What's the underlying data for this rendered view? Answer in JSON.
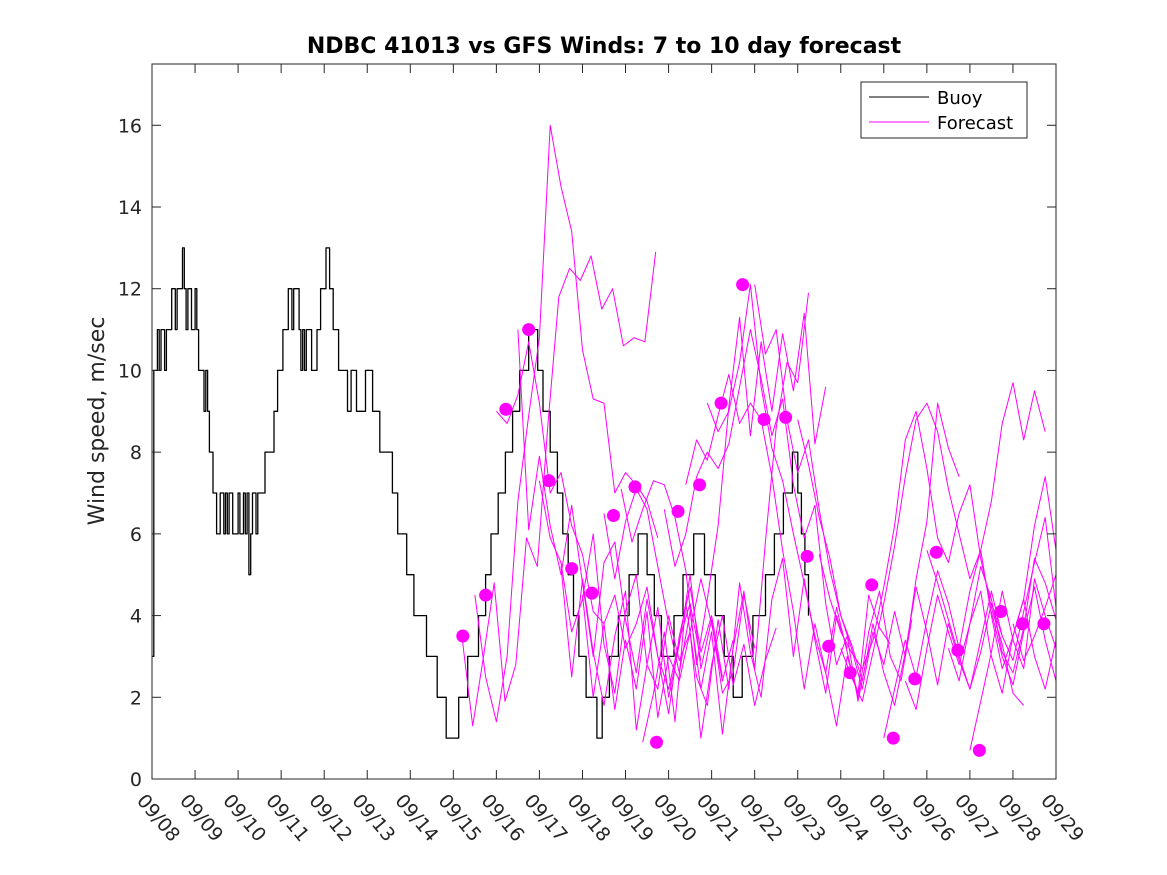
{
  "chart_data": {
    "type": "line",
    "title": "NDBC 41013 vs GFS Winds: 7 to 10 day forecast",
    "xlabel": "",
    "ylabel": "Wind speed, m/sec",
    "ylim": [
      0,
      17.5
    ],
    "yticks": [
      0,
      2,
      4,
      6,
      8,
      10,
      12,
      14,
      16
    ],
    "xlim": [
      0,
      21
    ],
    "xtick_labels": [
      "09/08",
      "09/09",
      "09/10",
      "09/11",
      "09/12",
      "09/13",
      "09/14",
      "09/15",
      "09/16",
      "09/17",
      "09/18",
      "09/19",
      "09/20",
      "09/21",
      "09/22",
      "09/23",
      "09/24",
      "09/25",
      "09/26",
      "09/27",
      "09/28",
      "09/29"
    ],
    "legend": {
      "location": "top-right",
      "entries": [
        {
          "label": "Buoy",
          "color": "#000000"
        },
        {
          "label": "Forecast",
          "color": "#ff00ff"
        }
      ]
    },
    "colors": {
      "buoy": "#000000",
      "forecast": "#ff00ff"
    },
    "series": [
      {
        "name": "Buoy",
        "color": "#000000",
        "x_start": 0,
        "x_step": 0.04167,
        "values": [
          3,
          10,
          10,
          11,
          10,
          11,
          11,
          10,
          11,
          11,
          11,
          12,
          12,
          11,
          12,
          12,
          12,
          13,
          12,
          11,
          12,
          12,
          11,
          11,
          12,
          11,
          10,
          10,
          10,
          9,
          10,
          9,
          8,
          8,
          7,
          7,
          6,
          6,
          7,
          7,
          6,
          7,
          6,
          7,
          7,
          6,
          6,
          6,
          7,
          6,
          6,
          7,
          6,
          7,
          5,
          6,
          7,
          7,
          6,
          7,
          7,
          7,
          7,
          8,
          8,
          8,
          8,
          8,
          9,
          9,
          10,
          10,
          10,
          11,
          11,
          11,
          12,
          12,
          11,
          12,
          12,
          12,
          11,
          10,
          11,
          10,
          11,
          11,
          11,
          10,
          10,
          10,
          11,
          11,
          12,
          12,
          12,
          13,
          13,
          12,
          12,
          11,
          11,
          11,
          10,
          10,
          10,
          10,
          10,
          9,
          9,
          10,
          10,
          10,
          9,
          9,
          9,
          9,
          9,
          10,
          10,
          10,
          10,
          9,
          9,
          9,
          9,
          8,
          8,
          8,
          8,
          8,
          8,
          8,
          7,
          7,
          7,
          6,
          6,
          6,
          6,
          6,
          5,
          5,
          5,
          5,
          4,
          4,
          4,
          4,
          4,
          4,
          4,
          3,
          3,
          3,
          3,
          3,
          3,
          2,
          2,
          2,
          2,
          2,
          1,
          1,
          1,
          1,
          1,
          1,
          1,
          2,
          2,
          2,
          2,
          2,
          3,
          3,
          3,
          3,
          3,
          3,
          4,
          4,
          4,
          4,
          5,
          5,
          5,
          6,
          6,
          6,
          6,
          7,
          7,
          7,
          7,
          8,
          8,
          8,
          8,
          9,
          9,
          9,
          9,
          10,
          10,
          10,
          10,
          10,
          11,
          11,
          11,
          11,
          11,
          10,
          10,
          10,
          9,
          9,
          9,
          9,
          8,
          8,
          8,
          8,
          7,
          7,
          7,
          6,
          6,
          6,
          5,
          5,
          5,
          4,
          4,
          4,
          3,
          3,
          3,
          3,
          2,
          2,
          2,
          2,
          2,
          2,
          1,
          1,
          1,
          2,
          2,
          2,
          2,
          3,
          3,
          3,
          3,
          3,
          4,
          4,
          4,
          4,
          4,
          4,
          5,
          5,
          5,
          5,
          5,
          6,
          6,
          6,
          6,
          6,
          5,
          5,
          5,
          5,
          4,
          4,
          4,
          4,
          3,
          3,
          3,
          3,
          3,
          3,
          3,
          4,
          4,
          4,
          4,
          4,
          5,
          5,
          5,
          5,
          5,
          5,
          6,
          6,
          6,
          6,
          6,
          6,
          5,
          5,
          5,
          5,
          5,
          5,
          4,
          4,
          4,
          4,
          4,
          3,
          3,
          3,
          3,
          3,
          2,
          2,
          2,
          2,
          2,
          3,
          3,
          3,
          3,
          3,
          3,
          4,
          4,
          4,
          4,
          4,
          4,
          4,
          5,
          5,
          5,
          5,
          5,
          6,
          6,
          6,
          6,
          6,
          7,
          7,
          7,
          7,
          7,
          8,
          8,
          8,
          7,
          7,
          6,
          6,
          5,
          5,
          4
        ]
      },
      {
        "name": "Forecast 1",
        "color": "#ff00ff",
        "x_start": 7.2,
        "x_step": 0.25,
        "values": [
          3.5,
          1.3,
          3.0,
          4.8,
          1.9,
          2.8,
          5.9,
          5.2,
          8.7,
          11.8,
          12.5,
          12.2,
          12.8,
          11.5,
          12.0,
          10.6,
          10.8,
          10.7,
          12.9
        ]
      },
      {
        "name": "Forecast 2",
        "color": "#ff00ff",
        "x_start": 7.5,
        "x_step": 0.25,
        "values": [
          4.5,
          2.5,
          1.4,
          3.0,
          6.8,
          8.9,
          10.8,
          16.0,
          14.5,
          13.4,
          10.5,
          9.3,
          9.2,
          7.0,
          7.5,
          7.2,
          6.8,
          5.9
        ]
      },
      {
        "name": "Forecast 3",
        "color": "#ff00ff",
        "x_start": 8.0,
        "x_step": 0.25,
        "values": [
          9.0,
          8.7,
          9.4,
          10.7,
          9.2,
          7.0,
          7.5,
          6.2,
          5.5,
          4.1,
          3.8,
          4.5,
          3.2,
          3.8,
          4.7,
          3.0,
          2.2,
          3.4,
          4.3,
          2.9
        ]
      },
      {
        "name": "Forecast 4",
        "color": "#ff00ff",
        "x_start": 8.5,
        "x_step": 0.25,
        "values": [
          11.0,
          6.1,
          7.9,
          6.2,
          5.0,
          6.7,
          4.8,
          3.0,
          5.3,
          5.8,
          3.9,
          2.6,
          4.4,
          3.0,
          1.6,
          3.5,
          4.7,
          3.1,
          4.0,
          2.5
        ]
      },
      {
        "name": "Forecast 5",
        "color": "#ff00ff",
        "x_start": 9.0,
        "x_step": 0.25,
        "values": [
          7.3,
          5.9,
          5.3,
          3.6,
          4.4,
          6.0,
          3.3,
          2.1,
          4.1,
          5.0,
          2.8,
          2.2,
          4.0,
          2.9,
          3.6,
          4.9,
          3.8,
          2.4,
          3.4
        ]
      },
      {
        "name": "Forecast 6",
        "color": "#ff00ff",
        "x_start": 9.5,
        "x_step": 0.25,
        "values": [
          5.2,
          2.5,
          4.9,
          3.1,
          1.8,
          3.5,
          4.6,
          1.2,
          2.8,
          4.2,
          2.0,
          3.3,
          5.0,
          2.7,
          3.9,
          2.1,
          2.6,
          4.5,
          3.2
        ]
      },
      {
        "name": "Forecast 7",
        "color": "#ff00ff",
        "x_start": 10.0,
        "x_step": 0.25,
        "values": [
          4.5,
          2.0,
          3.8,
          1.7,
          3.4,
          2.2,
          4.1,
          1.5,
          3.0,
          2.4,
          3.6,
          1.0,
          2.8,
          4.0,
          2.3,
          3.3,
          1.8,
          2.9,
          3.7
        ]
      },
      {
        "name": "Forecast 8",
        "color": "#ff00ff",
        "x_start": 10.5,
        "x_step": 0.25,
        "values": [
          6.5,
          4.9,
          6.3,
          7.1,
          6.6,
          5.2,
          3.8,
          2.6,
          4.1,
          2.2,
          3.6,
          1.1,
          3.2,
          4.6,
          2.7,
          5.8,
          8.6,
          10.2,
          9.7,
          11.9
        ]
      },
      {
        "name": "Forecast 9",
        "color": "#ff00ff",
        "x_start": 10.9,
        "x_step": 0.25,
        "values": [
          7.1,
          5.8,
          6.6,
          7.3,
          7.2,
          6.4,
          5.1,
          2.8,
          4.4,
          6.2,
          9.1,
          11.3,
          8.4,
          10.7,
          9.0,
          10.9,
          9.5,
          11.4,
          8.2,
          9.6
        ]
      },
      {
        "name": "Forecast 10",
        "color": "#ff00ff",
        "x_start": 11.4,
        "x_step": 0.25,
        "values": [
          0.9,
          2.1,
          3.6,
          1.4,
          4.3,
          2.5,
          1.8,
          3.9,
          2.2,
          4.8,
          3.1,
          2.0,
          4.4,
          5.4,
          3.0,
          4.9,
          3.4,
          2.1,
          4.0,
          3.2
        ]
      },
      {
        "name": "Forecast 11",
        "color": "#ff00ff",
        "x_start": 11.9,
        "x_step": 0.25,
        "values": [
          6.6,
          5.2,
          6.0,
          7.4,
          8.0,
          7.6,
          8.2,
          9.6,
          11.0,
          9.8,
          8.4,
          9.3,
          7.2,
          5.9,
          6.7,
          4.3,
          2.8,
          3.5,
          1.9,
          3.2
        ]
      },
      {
        "name": "Forecast 12",
        "color": "#ff00ff",
        "x_start": 12.4,
        "x_step": 0.25,
        "values": [
          7.2,
          8.3,
          7.8,
          8.9,
          9.9,
          8.7,
          9.2,
          8.8,
          7.4,
          5.6,
          4.1,
          2.2,
          3.8,
          2.6,
          1.3,
          3.0,
          2.1,
          4.5,
          3.7,
          3.3
        ]
      },
      {
        "name": "Forecast 13",
        "color": "#ff00ff",
        "x_start": 12.9,
        "x_step": 0.25,
        "values": [
          9.2,
          8.5,
          9.0,
          10.2,
          12.1,
          9.6,
          8.1,
          7.3,
          6.0,
          4.8,
          3.5,
          2.6,
          4.2,
          3.1,
          2.0,
          3.6,
          4.6,
          3.0,
          2.4,
          3.9
        ]
      },
      {
        "name": "Forecast 14",
        "color": "#ff00ff",
        "x_start": 14.0,
        "x_step": 0.25,
        "values": [
          12.1,
          10.4,
          11.0,
          8.8,
          7.5,
          8.3,
          6.6,
          5.1,
          4.0,
          3.2,
          2.2,
          3.6,
          2.8,
          4.1,
          3.0,
          4.9,
          6.3,
          9.2,
          8.1,
          7.4
        ]
      },
      {
        "name": "Forecast 15",
        "color": "#ff00ff",
        "x_start": 15.0,
        "x_step": 0.25,
        "values": [
          8.8,
          7.7,
          6.4,
          5.4,
          4.0,
          3.3,
          2.4,
          3.8,
          2.6,
          1.8,
          3.1,
          4.7,
          3.6,
          2.3,
          3.8,
          2.9,
          2.2,
          3.1,
          4.3,
          3.5
        ]
      },
      {
        "name": "Forecast 16",
        "color": "#ff00ff",
        "x_start": 15.5,
        "x_step": 0.25,
        "values": [
          5.5,
          4.4,
          3.6,
          3.1,
          2.7,
          3.4,
          4.7,
          6.2,
          8.3,
          9.0,
          7.6,
          5.9,
          5.3,
          6.5,
          7.2,
          5.4,
          4.2,
          3.3,
          2.1,
          1.8
        ]
      },
      {
        "name": "Forecast 17",
        "color": "#ff00ff",
        "x_start": 16.0,
        "x_step": 0.25,
        "values": [
          3.2,
          2.5,
          1.9,
          3.1,
          4.3,
          5.7,
          7.4,
          8.8,
          9.2,
          8.5,
          7.1,
          6.0,
          4.9,
          5.6,
          6.8,
          8.7,
          9.7,
          8.3,
          9.5,
          8.5
        ]
      },
      {
        "name": "Forecast 18",
        "color": "#ff00ff",
        "x_start": 17.0,
        "x_step": 0.25,
        "values": [
          1.0,
          2.2,
          3.4,
          2.5,
          3.9,
          5.1,
          4.3,
          3.2,
          4.6,
          5.6,
          4.0,
          2.7,
          3.5,
          4.4,
          3.0,
          2.2,
          3.4,
          4.1,
          5.0
        ]
      },
      {
        "name": "Forecast 19",
        "color": "#ff00ff",
        "x_start": 17.5,
        "x_step": 0.25,
        "values": [
          2.4,
          1.7,
          3.2,
          4.5,
          3.6,
          2.8,
          3.8,
          5.2,
          4.4,
          3.1,
          2.6,
          3.7,
          5.4,
          4.8,
          3.9,
          3.0,
          2.4,
          3.3,
          2.5,
          1.6
        ]
      },
      {
        "name": "Forecast 20",
        "color": "#ff00ff",
        "x_start": 18.0,
        "x_step": 0.25,
        "values": [
          5.6,
          4.8,
          3.9,
          3.0,
          2.2,
          3.4,
          4.6,
          3.5,
          2.9,
          4.1,
          5.3,
          6.4,
          4.2,
          3.3,
          2.6,
          3.6,
          4.7,
          2.8,
          3.5,
          4.9
        ]
      },
      {
        "name": "Forecast 21",
        "color": "#ff00ff",
        "x_start": 18.5,
        "x_step": 0.25,
        "values": [
          3.2,
          2.4,
          3.8,
          4.6,
          3.0,
          2.1,
          3.5,
          4.4,
          6.2,
          7.4,
          5.6,
          4.2,
          3.1,
          2.5,
          4.0,
          3.2,
          2.6,
          4.4,
          3.9
        ]
      },
      {
        "name": "Forecast 22",
        "color": "#ff00ff",
        "x_start": 19.0,
        "x_step": 0.25,
        "values": [
          0.7,
          1.9,
          3.1,
          4.6,
          3.4,
          2.7,
          4.9,
          4.0,
          3.2,
          4.5,
          3.6,
          2.4,
          3.9,
          5.0
        ]
      },
      {
        "name": "Forecast 23",
        "color": "#ff00ff",
        "x_start": 19.5,
        "x_step": 0.25,
        "values": [
          4.1,
          3.0,
          2.3,
          3.6,
          4.7,
          3.4,
          2.4,
          3.3,
          4.8
        ]
      },
      {
        "name": "Forecast 24",
        "color": "#ff00ff",
        "x_start": 20.0,
        "x_step": 0.25,
        "values": [
          3.8,
          2.9,
          3.5,
          4.2,
          5.0
        ]
      }
    ],
    "markers": {
      "name": "Forecast points",
      "color": "#ff00ff",
      "x": [
        7.22,
        7.75,
        8.22,
        8.75,
        9.22,
        9.75,
        10.22,
        10.72,
        11.22,
        11.72,
        12.22,
        12.72,
        13.22,
        13.72,
        14.22,
        14.72,
        15.22,
        15.72,
        16.22,
        16.72,
        17.22,
        17.72,
        18.22,
        18.72,
        19.22,
        19.72,
        20.22,
        20.72
      ],
      "y": [
        3.5,
        4.5,
        9.05,
        11.0,
        7.3,
        5.15,
        4.55,
        6.45,
        7.15,
        0.9,
        6.55,
        7.2,
        9.2,
        12.1,
        8.8,
        8.85,
        5.45,
        3.25,
        2.6,
        4.75,
        1.0,
        2.45,
        5.55,
        3.15,
        0.7,
        4.1,
        3.8,
        3.8
      ]
    }
  }
}
